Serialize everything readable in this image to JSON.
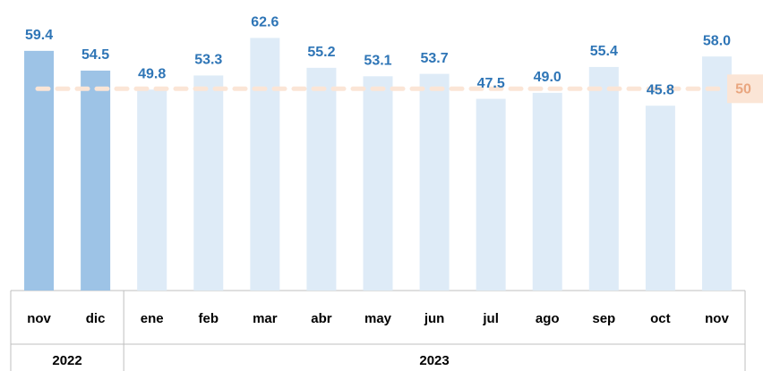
{
  "chart_data": {
    "type": "bar",
    "series": [
      {
        "name": "2022",
        "color": "#9dc3e6",
        "categories": [
          "nov",
          "dic"
        ],
        "values": [
          59.4,
          54.5
        ]
      },
      {
        "name": "2023",
        "color": "#deebf7",
        "categories": [
          "ene",
          "feb",
          "mar",
          "abr",
          "may",
          "jun",
          "jul",
          "ago",
          "sep",
          "oct",
          "nov"
        ],
        "values": [
          49.8,
          53.3,
          62.6,
          55.2,
          53.1,
          53.7,
          47.5,
          49.0,
          55.4,
          45.8,
          58.0
        ],
        "value_labels": [
          "49.8",
          "53.3",
          "62.6",
          "55.2",
          "53.1",
          "53.7",
          "47.5",
          "49.0",
          "55.4",
          "45.8",
          "58.0"
        ]
      }
    ],
    "ylim": [
      0,
      72
    ],
    "reference_line": {
      "value": 50,
      "color": "#fbe5d6",
      "label_color": "#e9a67f"
    }
  }
}
